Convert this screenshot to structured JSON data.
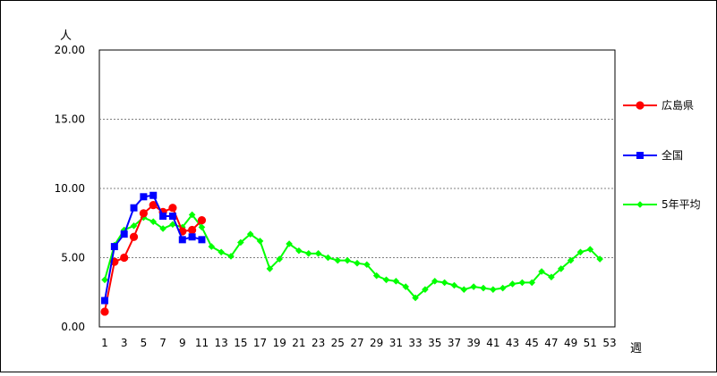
{
  "chart_data": {
    "type": "line",
    "y_unit_label": "人",
    "x_unit_label": "週",
    "ylim": [
      0,
      20
    ],
    "y_ticks": [
      "0.00",
      "5.00",
      "10.00",
      "15.00",
      "20.00"
    ],
    "x_tick_labels": [
      "1",
      "3",
      "5",
      "7",
      "9",
      "11",
      "13",
      "15",
      "17",
      "19",
      "21",
      "23",
      "25",
      "27",
      "29",
      "31",
      "33",
      "35",
      "37",
      "39",
      "41",
      "43",
      "45",
      "47",
      "49",
      "51",
      "53"
    ],
    "x_range": [
      1,
      53
    ],
    "grid": "horizontal dashed at 5, 10, 15",
    "legend_position": "right",
    "series": [
      {
        "name": "広島県",
        "color": "#ff0000",
        "marker": "circle",
        "x": [
          1,
          2,
          3,
          4,
          5,
          6,
          7,
          8,
          9,
          10,
          11
        ],
        "values": [
          1.1,
          4.7,
          5.0,
          6.5,
          8.2,
          8.8,
          8.3,
          8.6,
          6.9,
          7.0,
          7.7
        ]
      },
      {
        "name": "全国",
        "color": "#0000ff",
        "marker": "square",
        "x": [
          1,
          2,
          3,
          4,
          5,
          6,
          7,
          8,
          9,
          10,
          11
        ],
        "values": [
          1.9,
          5.8,
          6.7,
          8.6,
          9.4,
          9.5,
          8.0,
          8.0,
          6.3,
          6.5,
          6.3
        ]
      },
      {
        "name": "5年平均",
        "color": "#00ff00",
        "marker": "diamond",
        "x": [
          1,
          2,
          3,
          4,
          5,
          6,
          7,
          8,
          9,
          10,
          11,
          12,
          13,
          14,
          15,
          16,
          17,
          18,
          19,
          20,
          21,
          22,
          23,
          24,
          25,
          26,
          27,
          28,
          29,
          30,
          31,
          32,
          33,
          34,
          35,
          36,
          37,
          38,
          39,
          40,
          41,
          42,
          43,
          44,
          45,
          46,
          47,
          48,
          49,
          50,
          51,
          52
        ],
        "values": [
          3.4,
          5.9,
          7.0,
          7.3,
          7.9,
          7.6,
          7.1,
          7.4,
          7.2,
          8.1,
          7.2,
          5.8,
          5.4,
          5.1,
          6.1,
          6.7,
          6.2,
          4.2,
          4.9,
          6.0,
          5.5,
          5.3,
          5.3,
          5.0,
          4.8,
          4.8,
          4.6,
          4.5,
          3.7,
          3.4,
          3.3,
          2.9,
          2.1,
          2.7,
          3.3,
          3.2,
          3.0,
          2.7,
          2.9,
          2.8,
          2.7,
          2.8,
          3.1,
          3.2,
          3.2,
          4.0,
          3.6,
          4.2,
          4.8,
          5.4,
          5.6,
          4.9
        ]
      }
    ]
  }
}
